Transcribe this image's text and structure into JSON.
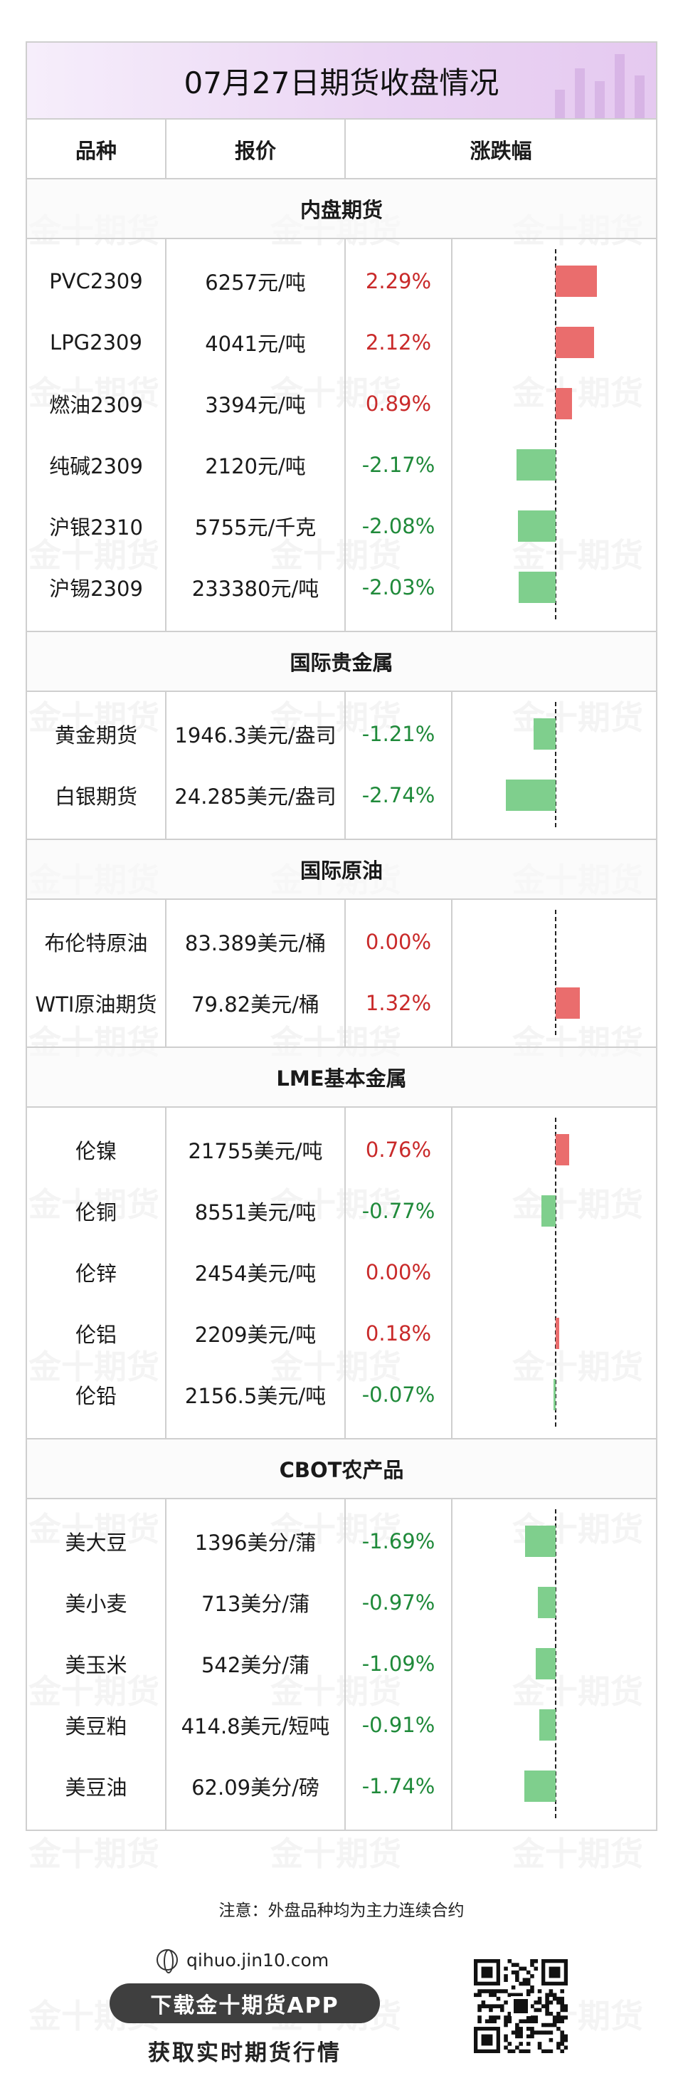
{
  "title": "07月27日期货收盘情况",
  "watermark": "金十期货",
  "headers": {
    "name": "品种",
    "price": "报价",
    "change": "涨跌幅"
  },
  "sections": [
    {
      "title": "内盘期货",
      "rows": [
        {
          "name": "PVC2309",
          "price": "6257元/吨",
          "change": "2.29%",
          "value": 2.29
        },
        {
          "name": "LPG2309",
          "price": "4041元/吨",
          "change": "2.12%",
          "value": 2.12
        },
        {
          "name": "燃油2309",
          "price": "3394元/吨",
          "change": "0.89%",
          "value": 0.89
        },
        {
          "name": "纯碱2309",
          "price": "2120元/吨",
          "change": "-2.17%",
          "value": -2.17
        },
        {
          "name": "沪银2310",
          "price": "5755元/千克",
          "change": "-2.08%",
          "value": -2.08
        },
        {
          "name": "沪锡2309",
          "price": "233380元/吨",
          "change": "-2.03%",
          "value": -2.03
        }
      ]
    },
    {
      "title": "国际贵金属",
      "rows": [
        {
          "name": "黄金期货",
          "price": "1946.3美元/盎司",
          "change": "-1.21%",
          "value": -1.21
        },
        {
          "name": "白银期货",
          "price": "24.285美元/盎司",
          "change": "-2.74%",
          "value": -2.74
        }
      ]
    },
    {
      "title": "国际原油",
      "rows": [
        {
          "name": "布伦特原油",
          "price": "83.389美元/桶",
          "change": "0.00%",
          "value": 0.0
        },
        {
          "name": "WTI原油期货",
          "price": "79.82美元/桶",
          "change": "1.32%",
          "value": 1.32
        }
      ]
    },
    {
      "title": "LME基本金属",
      "rows": [
        {
          "name": "伦镍",
          "price": "21755美元/吨",
          "change": "0.76%",
          "value": 0.76
        },
        {
          "name": "伦铜",
          "price": "8551美元/吨",
          "change": "-0.77%",
          "value": -0.77
        },
        {
          "name": "伦锌",
          "price": "2454美元/吨",
          "change": "0.00%",
          "value": 0.0
        },
        {
          "name": "伦铝",
          "price": "2209美元/吨",
          "change": "0.18%",
          "value": 0.18
        },
        {
          "name": "伦铅",
          "price": "2156.5美元/吨",
          "change": "-0.07%",
          "value": -0.07
        }
      ]
    },
    {
      "title": "CBOT农产品",
      "rows": [
        {
          "name": "美大豆",
          "price": "1396美分/蒲",
          "change": "-1.69%",
          "value": -1.69
        },
        {
          "name": "美小麦",
          "price": "713美分/蒲",
          "change": "-0.97%",
          "value": -0.97
        },
        {
          "name": "美玉米",
          "price": "542美分/蒲",
          "change": "-1.09%",
          "value": -1.09
        },
        {
          "name": "美豆粕",
          "price": "414.8美元/短吨",
          "change": "-0.91%",
          "value": -0.91
        },
        {
          "name": "美豆油",
          "price": "62.09美分/磅",
          "change": "-1.74%",
          "value": -1.74
        }
      ]
    }
  ],
  "colors": {
    "up": "#c92a2a",
    "down": "#1f8a3a",
    "bar_up": "#ea6d6d",
    "bar_down": "#7fcf8d"
  },
  "footer": {
    "note": "注意：外盘品种均为主力连续合约",
    "site": "qihuo.jin10.com",
    "download": "下载金十期货APP",
    "tagline": "获取实时期货行情"
  }
}
